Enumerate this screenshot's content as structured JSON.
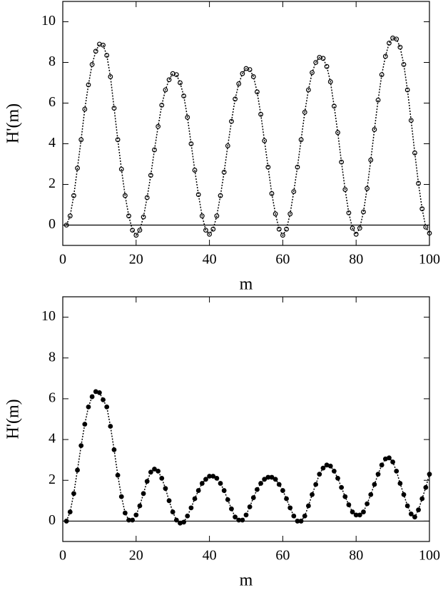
{
  "chart_data": [
    {
      "type": "line",
      "xlabel": "m",
      "ylabel": "H'(m)",
      "x": [
        1,
        2,
        3,
        4,
        5,
        6,
        7,
        8,
        9,
        10,
        11,
        12,
        13,
        14,
        15,
        16,
        17,
        18,
        19,
        20,
        21,
        22,
        23,
        24,
        25,
        26,
        27,
        28,
        29,
        30,
        31,
        32,
        33,
        34,
        35,
        36,
        37,
        38,
        39,
        40,
        41,
        42,
        43,
        44,
        45,
        46,
        47,
        48,
        49,
        50,
        51,
        52,
        53,
        54,
        55,
        56,
        57,
        58,
        59,
        60,
        61,
        62,
        63,
        64,
        65,
        66,
        67,
        68,
        69,
        70,
        71,
        72,
        73,
        74,
        75,
        76,
        77,
        78,
        79,
        80,
        81,
        82,
        83,
        84,
        85,
        86,
        87,
        88,
        89,
        90,
        91,
        92,
        93,
        94,
        95,
        96,
        97,
        98,
        99,
        100
      ],
      "series": [
        {
          "color": "#000000",
          "marker_fill": "none",
          "values": [
            0,
            0.45,
            1.45,
            2.8,
            4.2,
            5.7,
            6.9,
            7.9,
            8.55,
            8.9,
            8.85,
            8.35,
            7.3,
            5.75,
            4.2,
            2.75,
            1.45,
            0.45,
            -0.25,
            -0.5,
            -0.25,
            0.4,
            1.35,
            2.45,
            3.7,
            4.85,
            5.9,
            6.65,
            7.15,
            7.45,
            7.4,
            7.0,
            6.35,
            5.3,
            4.0,
            2.7,
            1.5,
            0.45,
            -0.25,
            -0.45,
            -0.2,
            0.45,
            1.45,
            2.6,
            3.9,
            5.1,
            6.2,
            6.95,
            7.45,
            7.7,
            7.65,
            7.3,
            6.55,
            5.45,
            4.15,
            2.85,
            1.55,
            0.55,
            -0.2,
            -0.5,
            -0.2,
            0.55,
            1.65,
            2.85,
            4.2,
            5.55,
            6.65,
            7.5,
            8.0,
            8.25,
            8.2,
            7.8,
            7.05,
            5.85,
            4.55,
            3.1,
            1.75,
            0.6,
            -0.15,
            -0.45,
            -0.15,
            0.65,
            1.8,
            3.2,
            4.7,
            6.15,
            7.4,
            8.3,
            8.95,
            9.2,
            9.15,
            8.75,
            7.9,
            6.65,
            5.15,
            3.55,
            2.05,
            0.8,
            -0.1,
            -0.4
          ]
        }
      ],
      "xlim": [
        0,
        100
      ],
      "xticks": [
        0,
        20,
        40,
        60,
        80,
        100
      ],
      "ylim": [
        -1,
        11
      ],
      "yticks": [
        0,
        2,
        4,
        6,
        8,
        10
      ],
      "zero_line": true
    },
    {
      "type": "line",
      "xlabel": "m",
      "ylabel": "H'(m)",
      "x": [
        1,
        2,
        3,
        4,
        5,
        6,
        7,
        8,
        9,
        10,
        11,
        12,
        13,
        14,
        15,
        16,
        17,
        18,
        19,
        20,
        21,
        22,
        23,
        24,
        25,
        26,
        27,
        28,
        29,
        30,
        31,
        32,
        33,
        34,
        35,
        36,
        37,
        38,
        39,
        40,
        41,
        42,
        43,
        44,
        45,
        46,
        47,
        48,
        49,
        50,
        51,
        52,
        53,
        54,
        55,
        56,
        57,
        58,
        59,
        60,
        61,
        62,
        63,
        64,
        65,
        66,
        67,
        68,
        69,
        70,
        71,
        72,
        73,
        74,
        75,
        76,
        77,
        78,
        79,
        80,
        81,
        82,
        83,
        84,
        85,
        86,
        87,
        88,
        89,
        90,
        91,
        92,
        93,
        94,
        95,
        96,
        97,
        98,
        99,
        100
      ],
      "series": [
        {
          "color": "#000000",
          "marker_fill": "#000000",
          "values": [
            0,
            0.45,
            1.35,
            2.5,
            3.7,
            4.75,
            5.6,
            6.1,
            6.35,
            6.3,
            5.95,
            5.6,
            4.65,
            3.5,
            2.25,
            1.2,
            0.4,
            0.05,
            0.05,
            0.3,
            0.75,
            1.35,
            1.95,
            2.4,
            2.55,
            2.45,
            2.1,
            1.6,
            1.0,
            0.45,
            0.05,
            -0.1,
            -0.05,
            0.25,
            0.65,
            1.1,
            1.5,
            1.85,
            2.05,
            2.2,
            2.2,
            2.1,
            1.85,
            1.5,
            1.05,
            0.6,
            0.2,
            0.05,
            0.05,
            0.3,
            0.7,
            1.15,
            1.55,
            1.85,
            2.05,
            2.15,
            2.15,
            2.05,
            1.8,
            1.5,
            1.1,
            0.65,
            0.25,
            0,
            0,
            0.25,
            0.75,
            1.3,
            1.8,
            2.3,
            2.6,
            2.75,
            2.7,
            2.45,
            2.1,
            1.65,
            1.2,
            0.8,
            0.45,
            0.3,
            0.3,
            0.45,
            0.85,
            1.3,
            1.8,
            2.3,
            2.75,
            3.05,
            3.1,
            2.9,
            2.45,
            1.85,
            1.3,
            0.75,
            0.35,
            0.2,
            0.55,
            1.1,
            1.65,
            2.3
          ]
        }
      ],
      "xlim": [
        0,
        100
      ],
      "xticks": [
        0,
        20,
        40,
        60,
        80,
        100
      ],
      "ylim": [
        -1,
        11
      ],
      "yticks": [
        0,
        2,
        4,
        6,
        8,
        10
      ],
      "zero_line": true
    }
  ]
}
